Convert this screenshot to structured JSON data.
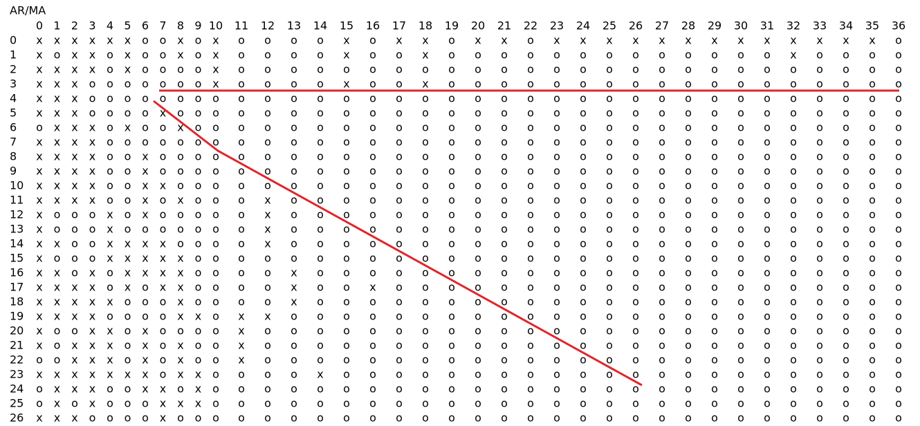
{
  "table": {
    "title": "AR/MA",
    "columns": [
      "0",
      "1",
      "2",
      "3",
      "4",
      "5",
      "6",
      "7",
      "8",
      "9",
      "10",
      "11",
      "12",
      "13",
      "14",
      "15",
      "16",
      "17",
      "18",
      "19",
      "20",
      "21",
      "22",
      "23",
      "24",
      "25",
      "26",
      "27",
      "28",
      "29",
      "30",
      "31",
      "32",
      "33",
      "34",
      "35",
      "36"
    ],
    "rows": [
      {
        "label": "0",
        "cells": [
          "x",
          "x",
          "x",
          "x",
          "x",
          "x",
          "o",
          "o",
          "x",
          "o",
          "x",
          "o",
          "o",
          "o",
          "o",
          "x",
          "o",
          "x",
          "x",
          "o",
          "x",
          "x",
          "o",
          "x",
          "x",
          "x",
          "x",
          "x",
          "x",
          "x",
          "x",
          "x",
          "x",
          "x",
          "x",
          "x",
          "o"
        ]
      },
      {
        "label": "1",
        "cells": [
          "x",
          "o",
          "x",
          "x",
          "o",
          "x",
          "o",
          "o",
          "x",
          "o",
          "x",
          "o",
          "o",
          "o",
          "o",
          "x",
          "o",
          "o",
          "x",
          "o",
          "o",
          "o",
          "o",
          "o",
          "o",
          "o",
          "o",
          "o",
          "o",
          "o",
          "o",
          "o",
          "x",
          "o",
          "o",
          "o",
          "o"
        ]
      },
      {
        "label": "2",
        "cells": [
          "x",
          "x",
          "x",
          "x",
          "o",
          "x",
          "o",
          "o",
          "o",
          "o",
          "x",
          "o",
          "o",
          "o",
          "o",
          "o",
          "o",
          "o",
          "o",
          "o",
          "o",
          "o",
          "o",
          "o",
          "o",
          "o",
          "o",
          "o",
          "o",
          "o",
          "o",
          "o",
          "o",
          "o",
          "o",
          "o",
          "o"
        ]
      },
      {
        "label": "3",
        "cells": [
          "x",
          "x",
          "x",
          "o",
          "o",
          "o",
          "o",
          "o",
          "o",
          "o",
          "x",
          "o",
          "o",
          "o",
          "o",
          "x",
          "o",
          "o",
          "x",
          "o",
          "o",
          "o",
          "o",
          "o",
          "o",
          "o",
          "o",
          "o",
          "o",
          "o",
          "o",
          "o",
          "o",
          "o",
          "o",
          "o",
          "o"
        ]
      },
      {
        "label": "4",
        "cells": [
          "x",
          "x",
          "x",
          "o",
          "o",
          "o",
          "o",
          "o",
          "o",
          "o",
          "o",
          "o",
          "o",
          "o",
          "o",
          "o",
          "o",
          "o",
          "o",
          "o",
          "o",
          "o",
          "o",
          "o",
          "o",
          "o",
          "o",
          "o",
          "o",
          "o",
          "o",
          "o",
          "o",
          "o",
          "o",
          "o",
          "o"
        ]
      },
      {
        "label": "5",
        "cells": [
          "x",
          "x",
          "x",
          "o",
          "o",
          "o",
          "o",
          "x",
          "o",
          "o",
          "o",
          "o",
          "o",
          "o",
          "o",
          "o",
          "o",
          "o",
          "o",
          "o",
          "o",
          "o",
          "o",
          "o",
          "o",
          "o",
          "o",
          "o",
          "o",
          "o",
          "o",
          "o",
          "o",
          "o",
          "o",
          "o",
          "o"
        ]
      },
      {
        "label": "6",
        "cells": [
          "o",
          "x",
          "x",
          "x",
          "o",
          "x",
          "o",
          "o",
          "x",
          "o",
          "o",
          "o",
          "o",
          "o",
          "o",
          "o",
          "o",
          "o",
          "o",
          "o",
          "o",
          "o",
          "o",
          "o",
          "o",
          "o",
          "o",
          "o",
          "o",
          "o",
          "o",
          "o",
          "o",
          "o",
          "o",
          "o",
          "o"
        ]
      },
      {
        "label": "7",
        "cells": [
          "x",
          "x",
          "x",
          "x",
          "o",
          "o",
          "o",
          "o",
          "o",
          "o",
          "o",
          "o",
          "o",
          "o",
          "o",
          "o",
          "o",
          "o",
          "o",
          "o",
          "o",
          "o",
          "o",
          "o",
          "o",
          "o",
          "o",
          "o",
          "o",
          "o",
          "o",
          "o",
          "o",
          "o",
          "o",
          "o",
          "o"
        ]
      },
      {
        "label": "8",
        "cells": [
          "x",
          "x",
          "x",
          "x",
          "o",
          "o",
          "x",
          "o",
          "o",
          "o",
          "o",
          "o",
          "o",
          "o",
          "o",
          "o",
          "o",
          "o",
          "o",
          "o",
          "o",
          "o",
          "o",
          "o",
          "o",
          "o",
          "o",
          "o",
          "o",
          "o",
          "o",
          "o",
          "o",
          "o",
          "o",
          "o",
          "o"
        ]
      },
      {
        "label": "9",
        "cells": [
          "x",
          "x",
          "x",
          "x",
          "o",
          "o",
          "x",
          "o",
          "o",
          "o",
          "o",
          "o",
          "o",
          "o",
          "o",
          "o",
          "o",
          "o",
          "o",
          "o",
          "o",
          "o",
          "o",
          "o",
          "o",
          "o",
          "o",
          "o",
          "o",
          "o",
          "o",
          "o",
          "o",
          "o",
          "o",
          "o",
          "o"
        ]
      },
      {
        "label": "10",
        "cells": [
          "x",
          "x",
          "x",
          "x",
          "o",
          "o",
          "x",
          "x",
          "o",
          "o",
          "o",
          "o",
          "o",
          "o",
          "o",
          "o",
          "o",
          "o",
          "o",
          "o",
          "o",
          "o",
          "o",
          "o",
          "o",
          "o",
          "o",
          "o",
          "o",
          "o",
          "o",
          "o",
          "o",
          "o",
          "o",
          "o",
          "o"
        ]
      },
      {
        "label": "11",
        "cells": [
          "x",
          "x",
          "x",
          "x",
          "o",
          "o",
          "x",
          "o",
          "x",
          "o",
          "o",
          "o",
          "x",
          "o",
          "o",
          "o",
          "o",
          "o",
          "o",
          "o",
          "o",
          "o",
          "o",
          "o",
          "o",
          "o",
          "o",
          "o",
          "o",
          "o",
          "o",
          "o",
          "o",
          "o",
          "o",
          "o",
          "o"
        ]
      },
      {
        "label": "12",
        "cells": [
          "x",
          "o",
          "o",
          "o",
          "x",
          "o",
          "x",
          "o",
          "o",
          "o",
          "o",
          "o",
          "x",
          "o",
          "o",
          "o",
          "o",
          "o",
          "o",
          "o",
          "o",
          "o",
          "o",
          "o",
          "o",
          "o",
          "o",
          "o",
          "o",
          "o",
          "o",
          "o",
          "o",
          "o",
          "o",
          "o",
          "o"
        ]
      },
      {
        "label": "13",
        "cells": [
          "x",
          "o",
          "o",
          "o",
          "x",
          "o",
          "o",
          "o",
          "o",
          "o",
          "o",
          "o",
          "x",
          "o",
          "o",
          "o",
          "o",
          "o",
          "o",
          "o",
          "o",
          "o",
          "o",
          "o",
          "o",
          "o",
          "o",
          "o",
          "o",
          "o",
          "o",
          "o",
          "o",
          "o",
          "o",
          "o",
          "o"
        ]
      },
      {
        "label": "14",
        "cells": [
          "x",
          "x",
          "o",
          "o",
          "x",
          "x",
          "x",
          "x",
          "o",
          "o",
          "o",
          "o",
          "x",
          "o",
          "o",
          "o",
          "o",
          "o",
          "o",
          "o",
          "o",
          "o",
          "o",
          "o",
          "o",
          "o",
          "o",
          "o",
          "o",
          "o",
          "o",
          "o",
          "o",
          "o",
          "o",
          "o",
          "o"
        ]
      },
      {
        "label": "15",
        "cells": [
          "x",
          "o",
          "o",
          "o",
          "x",
          "x",
          "x",
          "x",
          "x",
          "o",
          "o",
          "o",
          "o",
          "o",
          "o",
          "o",
          "o",
          "o",
          "o",
          "o",
          "o",
          "o",
          "o",
          "o",
          "o",
          "o",
          "o",
          "o",
          "o",
          "o",
          "o",
          "o",
          "o",
          "o",
          "o",
          "o",
          "o"
        ]
      },
      {
        "label": "16",
        "cells": [
          "x",
          "x",
          "o",
          "x",
          "o",
          "x",
          "x",
          "x",
          "x",
          "o",
          "o",
          "o",
          "o",
          "x",
          "o",
          "o",
          "o",
          "o",
          "o",
          "o",
          "o",
          "o",
          "o",
          "o",
          "o",
          "o",
          "o",
          "o",
          "o",
          "o",
          "o",
          "o",
          "o",
          "o",
          "o",
          "o",
          "o"
        ]
      },
      {
        "label": "17",
        "cells": [
          "x",
          "x",
          "x",
          "x",
          "o",
          "x",
          "o",
          "x",
          "x",
          "o",
          "o",
          "o",
          "o",
          "x",
          "o",
          "o",
          "x",
          "o",
          "o",
          "o",
          "o",
          "o",
          "o",
          "o",
          "o",
          "o",
          "o",
          "o",
          "o",
          "o",
          "o",
          "o",
          "o",
          "o",
          "o",
          "o",
          "o"
        ]
      },
      {
        "label": "18",
        "cells": [
          "x",
          "x",
          "x",
          "x",
          "x",
          "o",
          "o",
          "o",
          "x",
          "o",
          "o",
          "o",
          "o",
          "x",
          "o",
          "o",
          "o",
          "o",
          "o",
          "o",
          "o",
          "o",
          "o",
          "o",
          "o",
          "o",
          "o",
          "o",
          "o",
          "o",
          "o",
          "o",
          "o",
          "o",
          "o",
          "o",
          "o"
        ]
      },
      {
        "label": "19",
        "cells": [
          "x",
          "x",
          "x",
          "x",
          "o",
          "o",
          "o",
          "o",
          "x",
          "x",
          "o",
          "x",
          "x",
          "o",
          "o",
          "o",
          "o",
          "o",
          "o",
          "o",
          "o",
          "o",
          "o",
          "o",
          "o",
          "o",
          "o",
          "o",
          "o",
          "o",
          "o",
          "o",
          "o",
          "o",
          "o",
          "o",
          "o"
        ]
      },
      {
        "label": "20",
        "cells": [
          "x",
          "o",
          "o",
          "x",
          "x",
          "o",
          "x",
          "o",
          "o",
          "o",
          "o",
          "x",
          "o",
          "o",
          "o",
          "o",
          "o",
          "o",
          "o",
          "o",
          "o",
          "o",
          "o",
          "o",
          "o",
          "o",
          "o",
          "o",
          "o",
          "o",
          "o",
          "o",
          "o",
          "o",
          "o",
          "o",
          "o"
        ]
      },
      {
        "label": "21",
        "cells": [
          "x",
          "o",
          "x",
          "x",
          "x",
          "o",
          "x",
          "o",
          "x",
          "o",
          "o",
          "x",
          "o",
          "o",
          "o",
          "o",
          "o",
          "o",
          "o",
          "o",
          "o",
          "o",
          "o",
          "o",
          "o",
          "o",
          "o",
          "o",
          "o",
          "o",
          "o",
          "o",
          "o",
          "o",
          "o",
          "o",
          "o"
        ]
      },
      {
        "label": "22",
        "cells": [
          "o",
          "o",
          "x",
          "x",
          "x",
          "o",
          "x",
          "o",
          "x",
          "o",
          "o",
          "x",
          "o",
          "o",
          "o",
          "o",
          "o",
          "o",
          "o",
          "o",
          "o",
          "o",
          "o",
          "o",
          "o",
          "o",
          "o",
          "o",
          "o",
          "o",
          "o",
          "o",
          "o",
          "o",
          "o",
          "o",
          "o"
        ]
      },
      {
        "label": "23",
        "cells": [
          "x",
          "x",
          "x",
          "x",
          "x",
          "x",
          "x",
          "o",
          "x",
          "x",
          "o",
          "o",
          "o",
          "o",
          "x",
          "o",
          "o",
          "o",
          "o",
          "o",
          "o",
          "o",
          "o",
          "o",
          "o",
          "o",
          "o",
          "o",
          "o",
          "o",
          "o",
          "o",
          "o",
          "o",
          "o",
          "o",
          "o"
        ]
      },
      {
        "label": "24",
        "cells": [
          "o",
          "x",
          "x",
          "x",
          "o",
          "o",
          "x",
          "x",
          "o",
          "x",
          "o",
          "o",
          "o",
          "o",
          "o",
          "o",
          "o",
          "o",
          "o",
          "o",
          "o",
          "o",
          "o",
          "o",
          "o",
          "o",
          "o",
          "o",
          "o",
          "o",
          "o",
          "o",
          "o",
          "o",
          "o",
          "o",
          "o"
        ]
      },
      {
        "label": "25",
        "cells": [
          "o",
          "x",
          "o",
          "x",
          "o",
          "o",
          "o",
          "x",
          "x",
          "x",
          "o",
          "o",
          "o",
          "o",
          "o",
          "o",
          "o",
          "o",
          "o",
          "o",
          "o",
          "o",
          "o",
          "o",
          "o",
          "o",
          "o",
          "o",
          "o",
          "o",
          "o",
          "o",
          "o",
          "o",
          "o",
          "o",
          "o"
        ]
      },
      {
        "label": "26",
        "cells": [
          "x",
          "x",
          "x",
          "o",
          "o",
          "o",
          "o",
          "x",
          "o",
          "o",
          "o",
          "o",
          "o",
          "o",
          "o",
          "o",
          "o",
          "o",
          "o",
          "o",
          "o",
          "o",
          "o",
          "o",
          "o",
          "o",
          "o",
          "o",
          "o",
          "o",
          "o",
          "o",
          "o",
          "o",
          "o",
          "o",
          "o"
        ]
      }
    ]
  }
}
